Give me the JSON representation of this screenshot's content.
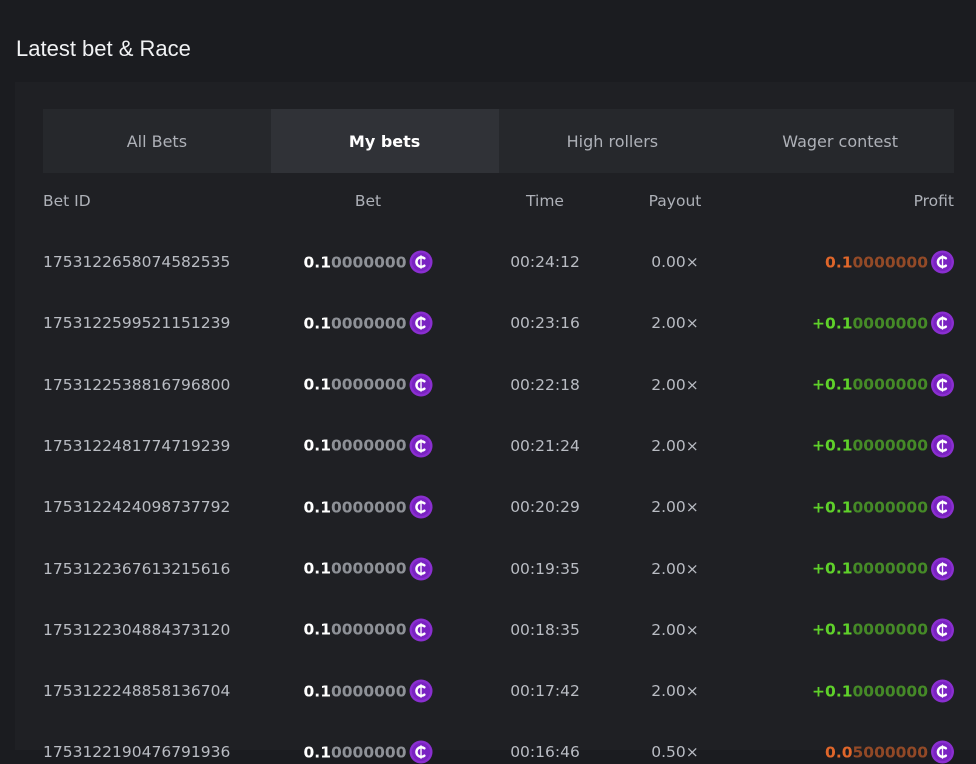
{
  "header": {
    "title": "Latest bet & Race"
  },
  "tabs": [
    {
      "label": "All Bets",
      "active": false
    },
    {
      "label": "My bets",
      "active": true
    },
    {
      "label": "High rollers",
      "active": false
    },
    {
      "label": "Wager contest",
      "active": false
    }
  ],
  "table": {
    "columns": [
      "Bet ID",
      "Bet",
      "Time",
      "Payout",
      "Profit"
    ],
    "rows": [
      {
        "id": "1753122658074582535",
        "bet": {
          "main": "0.1",
          "zeros": "0000000"
        },
        "time": "00:24:12",
        "payout": "0.00×",
        "profit": {
          "main": "0.1",
          "zeros": "0000000",
          "color": "#e0662a"
        }
      },
      {
        "id": "1753122599521151239",
        "bet": {
          "main": "0.1",
          "zeros": "0000000"
        },
        "time": "00:23:16",
        "payout": "2.00×",
        "profit": {
          "main": "+0.1",
          "zeros": "0000000",
          "color": "#5fd12a"
        }
      },
      {
        "id": "1753122538816796800",
        "bet": {
          "main": "0.1",
          "zeros": "0000000"
        },
        "time": "00:22:18",
        "payout": "2.00×",
        "profit": {
          "main": "+0.1",
          "zeros": "0000000",
          "color": "#5fd12a"
        }
      },
      {
        "id": "1753122481774719239",
        "bet": {
          "main": "0.1",
          "zeros": "0000000"
        },
        "time": "00:21:24",
        "payout": "2.00×",
        "profit": {
          "main": "+0.1",
          "zeros": "0000000",
          "color": "#5fd12a"
        }
      },
      {
        "id": "1753122424098737792",
        "bet": {
          "main": "0.1",
          "zeros": "0000000"
        },
        "time": "00:20:29",
        "payout": "2.00×",
        "profit": {
          "main": "+0.1",
          "zeros": "0000000",
          "color": "#5fd12a"
        }
      },
      {
        "id": "1753122367613215616",
        "bet": {
          "main": "0.1",
          "zeros": "0000000"
        },
        "time": "00:19:35",
        "payout": "2.00×",
        "profit": {
          "main": "+0.1",
          "zeros": "0000000",
          "color": "#5fd12a"
        }
      },
      {
        "id": "1753122304884373120",
        "bet": {
          "main": "0.1",
          "zeros": "0000000"
        },
        "time": "00:18:35",
        "payout": "2.00×",
        "profit": {
          "main": "+0.1",
          "zeros": "0000000",
          "color": "#5fd12a"
        }
      },
      {
        "id": "1753122248858136704",
        "bet": {
          "main": "0.1",
          "zeros": "0000000"
        },
        "time": "00:17:42",
        "payout": "2.00×",
        "profit": {
          "main": "+0.1",
          "zeros": "0000000",
          "color": "#5fd12a"
        }
      },
      {
        "id": "1753122190476791936",
        "bet": {
          "main": "0.1",
          "zeros": "0000000"
        },
        "time": "00:16:46",
        "payout": "0.50×",
        "profit": {
          "main": "0.0",
          "zeros": "5000000",
          "color": "#e0662a"
        }
      }
    ]
  }
}
